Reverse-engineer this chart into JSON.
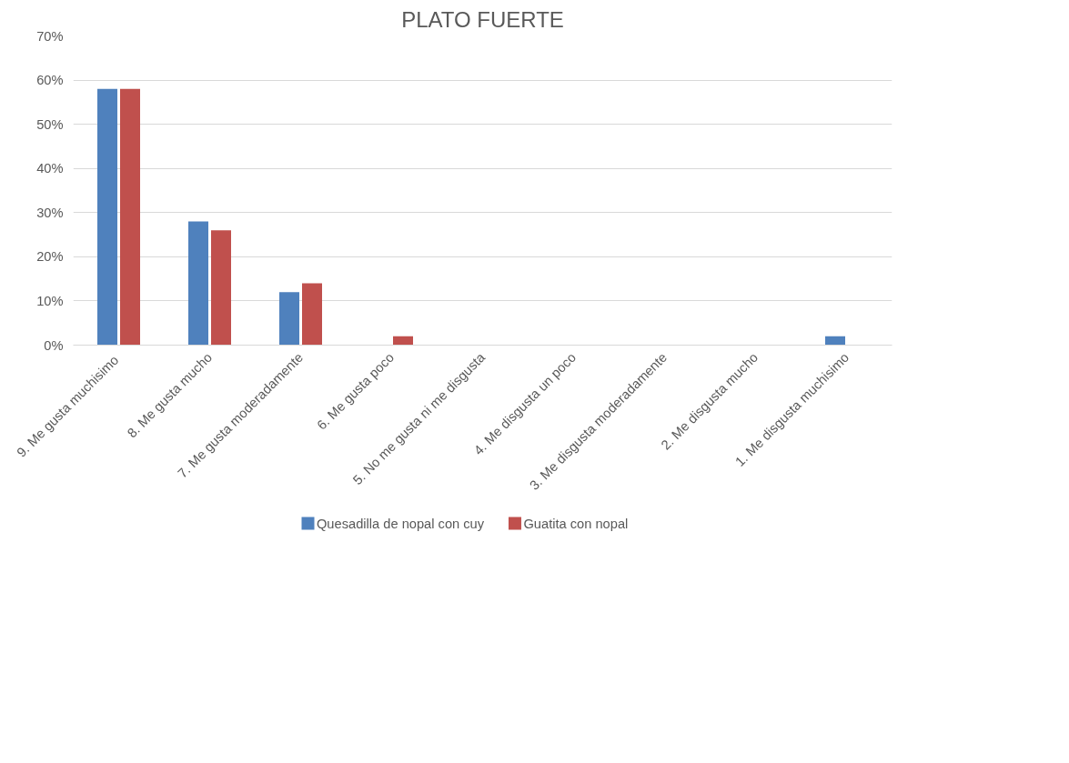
{
  "chart_data": {
    "type": "bar",
    "title": "PLATO FUERTE",
    "categories": [
      "9. Me gusta  muchisimo",
      "8. Me gusta mucho",
      "7. Me gusta moderadamente",
      "6. Me gusta poco",
      "5. No me gusta ni me disgusta",
      "4. Me disgusta un poco",
      "3. Me disgusta moderadamente",
      "2. Me disgusta mucho",
      "1. Me disgusta muchisimo"
    ],
    "series": [
      {
        "name": "Quesadilla de nopal con cuy",
        "color": "#4f81bd",
        "values": [
          58,
          28,
          12,
          0,
          0,
          0,
          0,
          0,
          2
        ]
      },
      {
        "name": "Guatita con nopal",
        "color": "#c0504d",
        "values": [
          58,
          26,
          14,
          2,
          0,
          0,
          0,
          0,
          0
        ]
      }
    ],
    "ylim": [
      0,
      70
    ],
    "yticks": [
      {
        "value": 0,
        "label": "0%"
      },
      {
        "value": 10,
        "label": "10%"
      },
      {
        "value": 20,
        "label": "20%"
      },
      {
        "value": 30,
        "label": "30%"
      },
      {
        "value": 40,
        "label": "40%"
      },
      {
        "value": 50,
        "label": "50%"
      },
      {
        "value": 60,
        "label": "60%"
      },
      {
        "value": 70,
        "label": "70%"
      }
    ],
    "grid": "y",
    "legend": "bottom"
  }
}
